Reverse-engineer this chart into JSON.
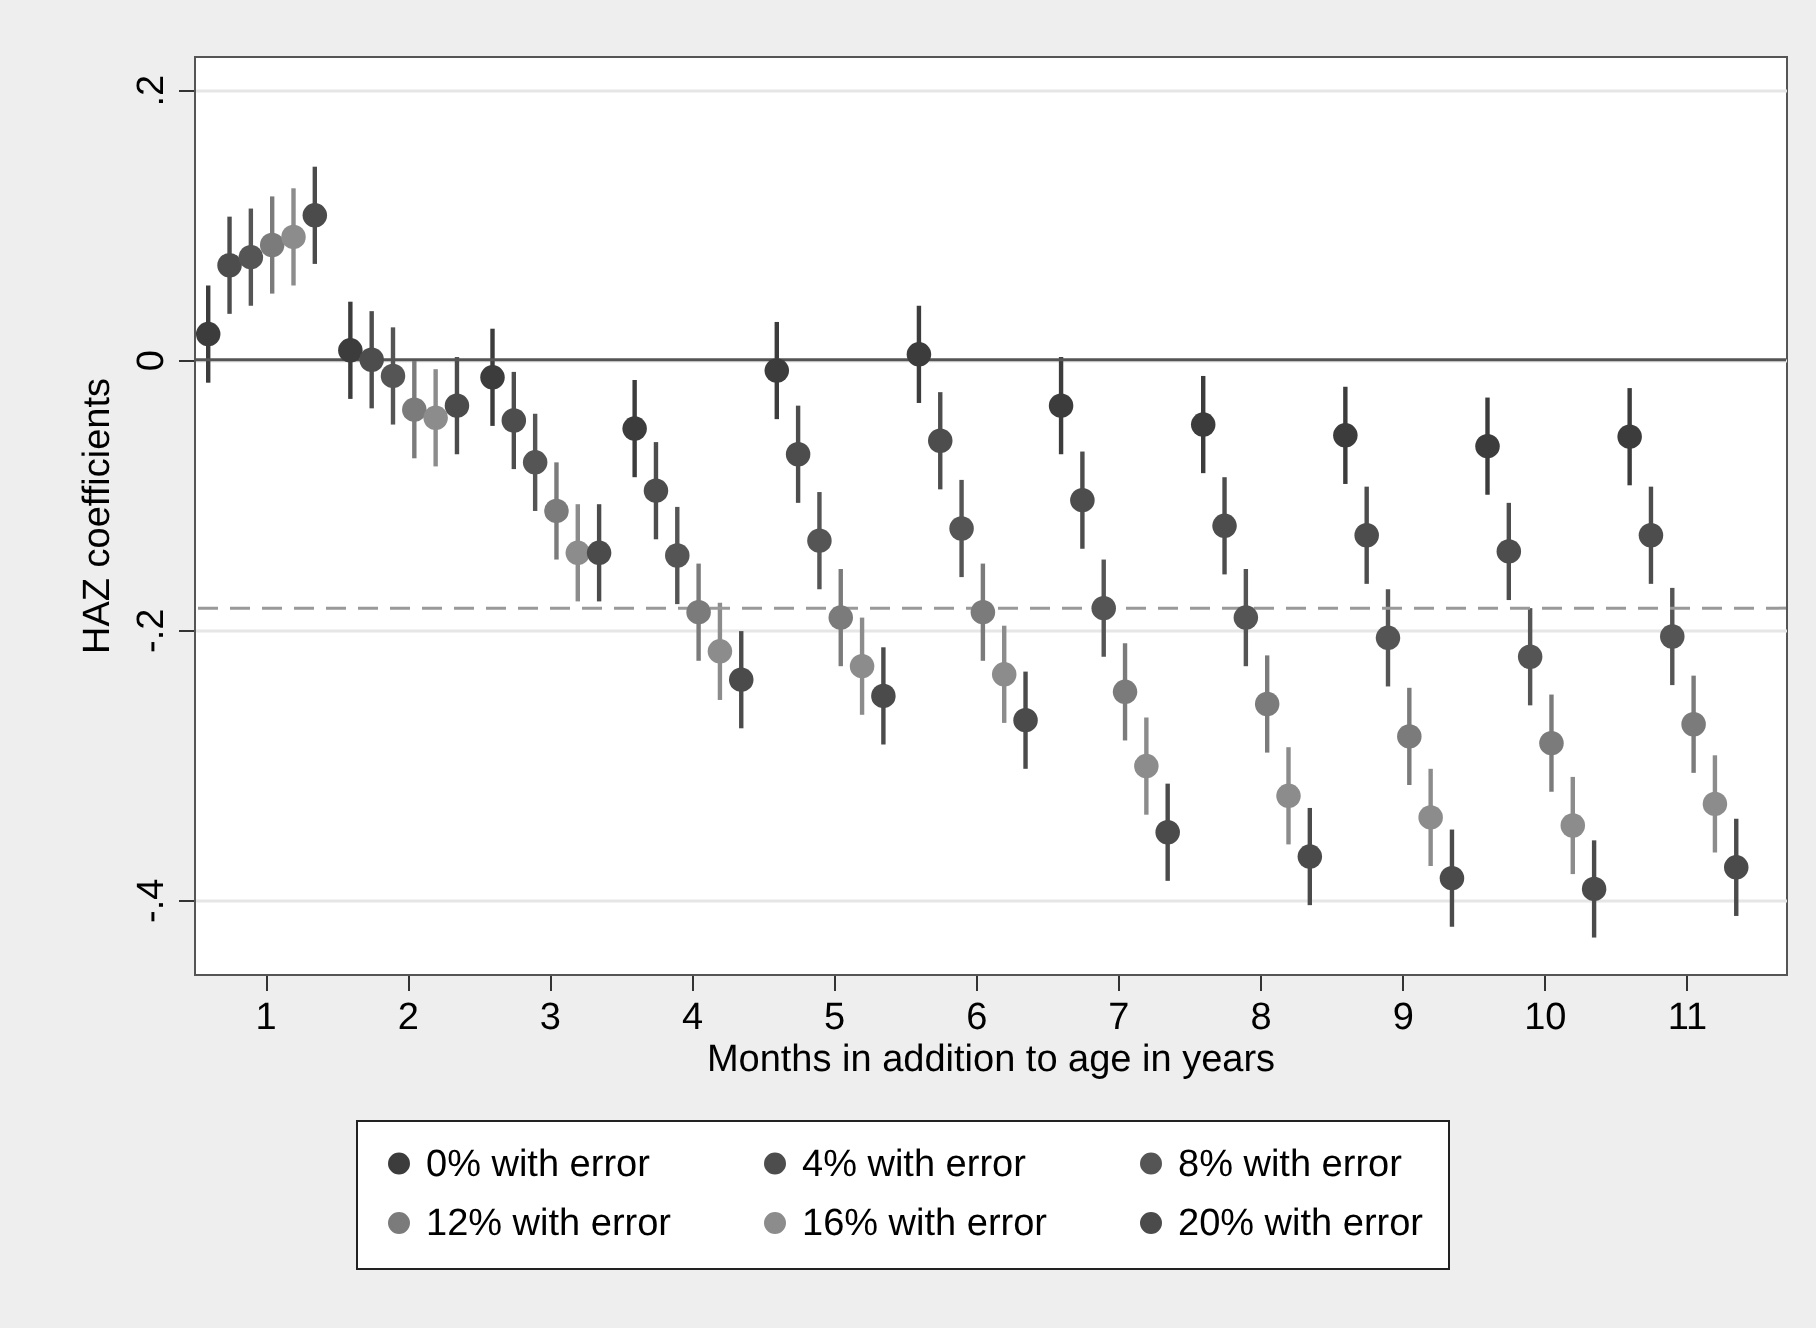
{
  "chart_data": {
    "type": "scatter",
    "xlabel": "Months in addition to age in years",
    "ylabel": "HAZ coefficients",
    "xlim": [
      0.5,
      11.7
    ],
    "xticks": [
      1,
      2,
      3,
      4,
      5,
      6,
      7,
      8,
      9,
      10,
      11
    ],
    "ylim": [
      -0.455,
      0.225
    ],
    "yticks": [
      {
        "value": 0.2,
        "label": ".2"
      },
      {
        "value": 0,
        "label": "0"
      },
      {
        "value": -0.2,
        "label": "-.2"
      },
      {
        "value": -0.4,
        "label": "-.4"
      }
    ],
    "grid": "y",
    "legend": "bottom",
    "marker": "circle",
    "ref_lines": [
      {
        "axis": "y",
        "value": 0,
        "color": "#555555",
        "line_style": "solid"
      },
      {
        "axis": "y",
        "value": -0.184,
        "color": "#999999",
        "line_style": "dashed"
      }
    ],
    "series": [
      {
        "name": "0% with error",
        "color": "#3c3c3c",
        "x": [
          0.6,
          1.6,
          2.6,
          3.6,
          4.6,
          5.6,
          6.6,
          7.6,
          8.6,
          9.6,
          10.6
        ],
        "values": [
          0.019,
          0.007,
          -0.013,
          -0.051,
          -0.008,
          0.004,
          -0.034,
          -0.048,
          -0.056,
          -0.064,
          -0.057
        ],
        "errors": [
          0.036,
          0.036,
          0.036,
          0.036,
          0.036,
          0.036,
          0.036,
          0.036,
          0.036,
          0.036,
          0.036
        ]
      },
      {
        "name": "4% with error",
        "color": "#4d4d4d",
        "x": [
          0.75,
          1.75,
          2.75,
          3.75,
          4.75,
          5.75,
          6.75,
          7.75,
          8.75,
          9.75,
          10.75
        ],
        "values": [
          0.07,
          0,
          -0.045,
          -0.097,
          -0.07,
          -0.06,
          -0.104,
          -0.123,
          -0.13,
          -0.142,
          -0.13
        ],
        "errors": [
          0.036,
          0.036,
          0.036,
          0.036,
          0.036,
          0.036,
          0.036,
          0.036,
          0.036,
          0.036,
          0.036
        ]
      },
      {
        "name": "8% with error",
        "color": "#555555",
        "x": [
          0.9,
          1.9,
          2.9,
          3.9,
          4.9,
          5.9,
          6.9,
          7.9,
          8.9,
          9.9,
          10.9
        ],
        "values": [
          0.076,
          -0.012,
          -0.076,
          -0.145,
          -0.134,
          -0.125,
          -0.184,
          -0.191,
          -0.206,
          -0.22,
          -0.205
        ],
        "errors": [
          0.036,
          0.036,
          0.036,
          0.036,
          0.036,
          0.036,
          0.036,
          0.036,
          0.036,
          0.036,
          0.036
        ]
      },
      {
        "name": "12% with error",
        "color": "#7b7b7b",
        "x": [
          1.05,
          2.05,
          3.05,
          4.05,
          5.05,
          6.05,
          7.05,
          8.05,
          9.05,
          10.05,
          11.05
        ],
        "values": [
          0.085,
          -0.037,
          -0.112,
          -0.187,
          -0.191,
          -0.187,
          -0.246,
          -0.255,
          -0.279,
          -0.284,
          -0.27
        ],
        "errors": [
          0.036,
          0.036,
          0.036,
          0.036,
          0.036,
          0.036,
          0.036,
          0.036,
          0.036,
          0.036,
          0.036
        ]
      },
      {
        "name": "16% with error",
        "color": "#8c8c8c",
        "x": [
          1.2,
          2.2,
          3.2,
          4.2,
          5.2,
          6.2,
          7.2,
          8.2,
          9.2,
          10.2,
          11.2
        ],
        "values": [
          0.091,
          -0.043,
          -0.143,
          -0.216,
          -0.227,
          -0.233,
          -0.301,
          -0.323,
          -0.339,
          -0.345,
          -0.329
        ],
        "errors": [
          0.036,
          0.036,
          0.036,
          0.036,
          0.036,
          0.036,
          0.036,
          0.036,
          0.036,
          0.036,
          0.036
        ]
      },
      {
        "name": "20% with error",
        "color": "#4b4b4b",
        "x": [
          1.35,
          2.35,
          3.35,
          4.35,
          5.35,
          6.35,
          7.35,
          8.35,
          9.35,
          10.35,
          11.35
        ],
        "values": [
          0.107,
          -0.034,
          -0.143,
          -0.237,
          -0.249,
          -0.267,
          -0.35,
          -0.368,
          -0.384,
          -0.392,
          -0.376
        ],
        "errors": [
          0.036,
          0.036,
          0.036,
          0.036,
          0.036,
          0.036,
          0.036,
          0.036,
          0.036,
          0.036,
          0.036
        ]
      }
    ]
  }
}
